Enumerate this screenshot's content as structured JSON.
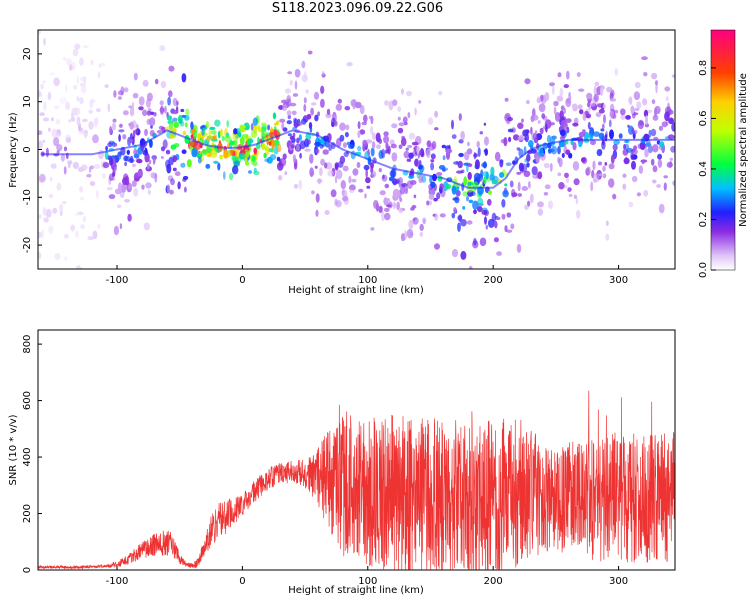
{
  "title": "S118.2023.096.09.22.G06",
  "chart_data": [
    {
      "type": "heatmap",
      "title": "S118.2023.096.09.22.G06",
      "xlabel": "Height of straight line (km)",
      "ylabel": "Frequency (Hz)",
      "xlim": [
        -163,
        345
      ],
      "ylim": [
        -25,
        25
      ],
      "x_ticks": [
        "-100",
        "0",
        "100",
        "200",
        "300"
      ],
      "y_ticks": [
        "20",
        "10",
        "0",
        "-10",
        "-20"
      ],
      "colorbar": {
        "label": "Normalized spectral amplitude",
        "range": [
          0,
          0.95
        ],
        "ticks": [
          "0.0",
          "0.2",
          "0.4",
          "0.6",
          "0.8"
        ]
      },
      "ridge": {
        "x": [
          -160,
          -120,
          -100,
          -80,
          -60,
          -50,
          -40,
          -30,
          -20,
          -10,
          0,
          10,
          20,
          30,
          40,
          60,
          80,
          100,
          120,
          140,
          160,
          180,
          200,
          210,
          220,
          230,
          240,
          260,
          280,
          300,
          320,
          345
        ],
        "frequency": [
          -1,
          -1,
          0,
          1,
          4,
          3,
          2,
          1,
          0.5,
          0.3,
          0.5,
          1,
          2,
          3,
          4,
          3,
          0,
          -2,
          -4,
          -5,
          -6,
          -8,
          -8,
          -6,
          -2,
          0,
          1,
          2,
          2,
          2,
          2,
          2
        ]
      }
    },
    {
      "type": "line",
      "xlabel": "Height of straight line (km)",
      "ylabel": "SNR (10 * v/v)",
      "xlim": [
        -163,
        345
      ],
      "ylim": [
        0,
        850
      ],
      "x_ticks": [
        "-100",
        "0",
        "100",
        "200",
        "300"
      ],
      "y_ticks": [
        "800",
        "600",
        "400",
        "200",
        "0"
      ],
      "color": "#ee3333",
      "envelope": {
        "x": [
          -163,
          -130,
          -110,
          -100,
          -90,
          -80,
          -70,
          -60,
          -55,
          -50,
          -45,
          -40,
          -35,
          -30,
          -25,
          -20,
          -10,
          0,
          10,
          20,
          30,
          40,
          50,
          60,
          70,
          80,
          100,
          120,
          140,
          160,
          180,
          200,
          220,
          240,
          250,
          260,
          280,
          300,
          320,
          345
        ],
        "mean": [
          10,
          10,
          12,
          20,
          40,
          70,
          90,
          100,
          85,
          40,
          20,
          15,
          25,
          80,
          140,
          170,
          200,
          230,
          280,
          320,
          340,
          350,
          340,
          330,
          330,
          300,
          280,
          270,
          260,
          260,
          250,
          250,
          280,
          260,
          240,
          260,
          250,
          260,
          250,
          260
        ],
        "spread": [
          5,
          5,
          6,
          10,
          20,
          30,
          40,
          50,
          40,
          20,
          10,
          8,
          20,
          40,
          60,
          70,
          60,
          40,
          40,
          40,
          40,
          40,
          50,
          100,
          200,
          250,
          270,
          280,
          280,
          280,
          280,
          280,
          280,
          200,
          180,
          200,
          220,
          230,
          230,
          230
        ]
      }
    }
  ]
}
